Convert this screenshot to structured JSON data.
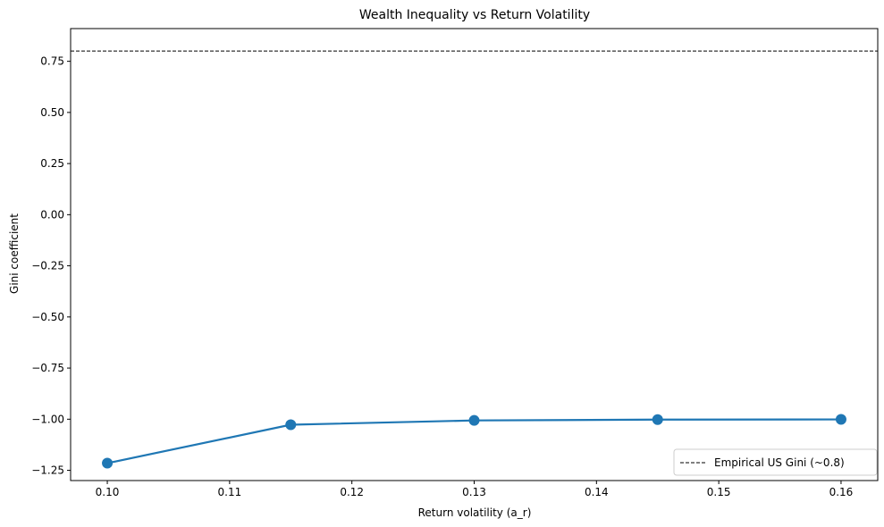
{
  "chart_data": {
    "type": "line",
    "title": "Wealth Inequality vs Return Volatility",
    "xlabel": "Return volatility (a_r)",
    "ylabel": "Gini coefficient",
    "xlim": [
      0.097,
      0.163
    ],
    "ylim": [
      -1.3,
      0.91
    ],
    "grid": false,
    "legend_position": "lower-right",
    "x": [
      0.1,
      0.115,
      0.13,
      0.145,
      0.16
    ],
    "series": [
      {
        "name": "",
        "color": "#1f77b4",
        "values": [
          -1.215,
          -1.027,
          -1.006,
          -1.002,
          -1.001
        ]
      }
    ],
    "reference_lines": [
      {
        "orientation": "horizontal",
        "value": 0.8,
        "label": "Empirical US Gini (~0.8)",
        "color": "#000000",
        "style": "dashed"
      }
    ],
    "xticks": [
      0.1,
      0.11,
      0.12,
      0.13,
      0.14,
      0.15,
      0.16
    ],
    "xtick_labels": [
      "0.10",
      "0.11",
      "0.12",
      "0.13",
      "0.14",
      "0.15",
      "0.16"
    ],
    "yticks": [
      0.75,
      0.5,
      0.25,
      0.0,
      -0.25,
      -0.5,
      -0.75,
      -1.0,
      -1.25
    ],
    "ytick_labels": [
      "0.75",
      "0.50",
      "0.25",
      "0.00",
      "−0.25",
      "−0.50",
      "−0.75",
      "−1.00",
      "−1.25"
    ]
  }
}
